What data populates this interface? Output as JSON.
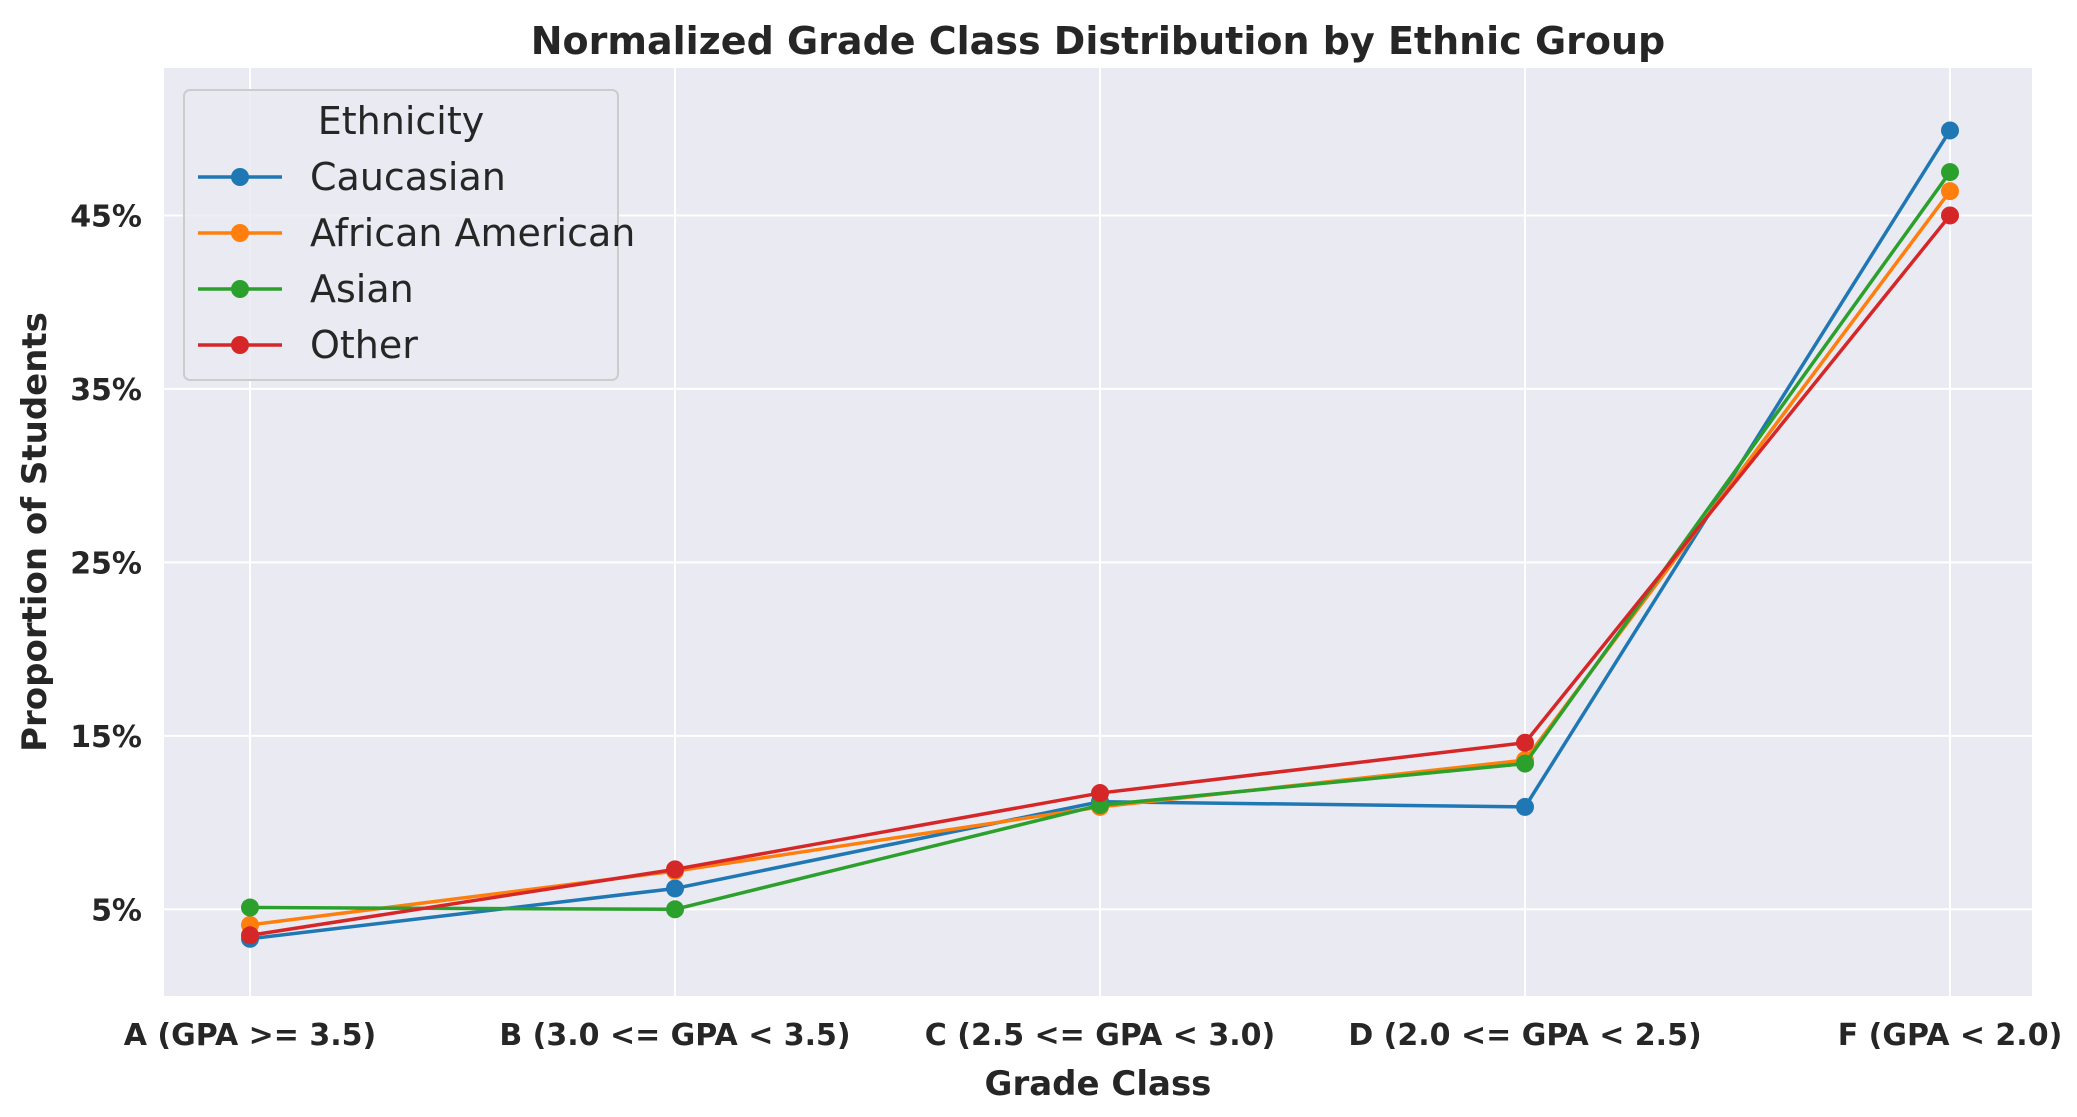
{
  "chart_data": {
    "type": "line",
    "title": "Normalized Grade Class Distribution by Ethnic Group",
    "xlabel": "Grade Class",
    "ylabel": "Proportion of Students",
    "categories": [
      "A (GPA >= 3.5)",
      "B (3.0 <= GPA < 3.5)",
      "C (2.5 <= GPA < 3.0)",
      "D (2.0 <= GPA < 2.5)",
      "F (GPA < 2.0)"
    ],
    "ylim": [
      0.0,
      0.535
    ],
    "yticks": [
      0.05,
      0.15,
      0.25,
      0.35,
      0.45
    ],
    "ytick_labels": [
      "5%",
      "15%",
      "25%",
      "35%",
      "45%"
    ],
    "legend": {
      "title": "Ethnicity",
      "position": "upper-left"
    },
    "grid": true,
    "series": [
      {
        "name": "Caucasian",
        "color": "#1f77b4",
        "values": [
          0.033,
          0.062,
          0.112,
          0.109,
          0.499
        ]
      },
      {
        "name": "African American",
        "color": "#ff7f0e",
        "values": [
          0.041,
          0.072,
          0.109,
          0.136,
          0.464
        ]
      },
      {
        "name": "Asian",
        "color": "#2ca02c",
        "values": [
          0.051,
          0.05,
          0.11,
          0.134,
          0.475
        ]
      },
      {
        "name": "Other",
        "color": "#d62728",
        "values": [
          0.035,
          0.073,
          0.117,
          0.146,
          0.45
        ]
      }
    ]
  }
}
